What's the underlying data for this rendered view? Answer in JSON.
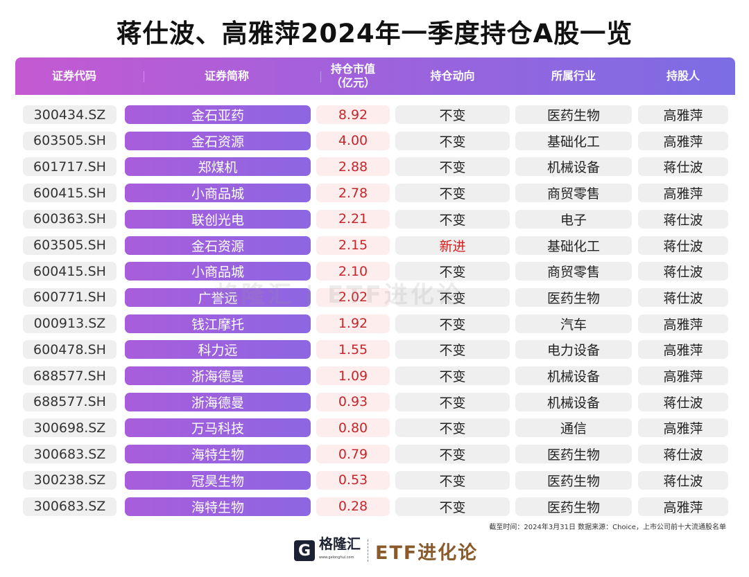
{
  "title": "蒋仕波、高雅萍2024年一季度持仓A股一览",
  "headers": {
    "code": "证券代码",
    "name": "证券简称",
    "value_l1": "持仓市值",
    "value_l2": "（亿元）",
    "trend": "持仓动向",
    "industry": "所属行业",
    "holder": "持股人"
  },
  "rows": [
    {
      "code": "300434.SZ",
      "name": "金石亚药",
      "value": "8.92",
      "trend": "不变",
      "industry": "医药生物",
      "holder": "高雅萍"
    },
    {
      "code": "603505.SH",
      "name": "金石资源",
      "value": "4.00",
      "trend": "不变",
      "industry": "基础化工",
      "holder": "高雅萍"
    },
    {
      "code": "601717.SH",
      "name": "郑煤机",
      "value": "2.88",
      "trend": "不变",
      "industry": "机械设备",
      "holder": "蒋仕波"
    },
    {
      "code": "600415.SH",
      "name": "小商品城",
      "value": "2.78",
      "trend": "不变",
      "industry": "商贸零售",
      "holder": "高雅萍"
    },
    {
      "code": "600363.SH",
      "name": "联创光电",
      "value": "2.21",
      "trend": "不变",
      "industry": "电子",
      "holder": "蒋仕波"
    },
    {
      "code": "603505.SH",
      "name": "金石资源",
      "value": "2.15",
      "trend": "新进",
      "industry": "基础化工",
      "holder": "蒋仕波"
    },
    {
      "code": "600415.SH",
      "name": "小商品城",
      "value": "2.10",
      "trend": "不变",
      "industry": "商贸零售",
      "holder": "蒋仕波"
    },
    {
      "code": "600771.SH",
      "name": "广誉远",
      "value": "2.02",
      "trend": "不变",
      "industry": "医药生物",
      "holder": "蒋仕波"
    },
    {
      "code": "000913.SZ",
      "name": "钱江摩托",
      "value": "1.92",
      "trend": "不变",
      "industry": "汽车",
      "holder": "高雅萍"
    },
    {
      "code": "600478.SH",
      "name": "科力远",
      "value": "1.55",
      "trend": "不变",
      "industry": "电力设备",
      "holder": "高雅萍"
    },
    {
      "code": "688577.SH",
      "name": "浙海德曼",
      "value": "1.09",
      "trend": "不变",
      "industry": "机械设备",
      "holder": "高雅萍"
    },
    {
      "code": "688577.SH",
      "name": "浙海德曼",
      "value": "0.93",
      "trend": "不变",
      "industry": "机械设备",
      "holder": "蒋仕波"
    },
    {
      "code": "300698.SZ",
      "name": "万马科技",
      "value": "0.80",
      "trend": "不变",
      "industry": "通信",
      "holder": "高雅萍"
    },
    {
      "code": "300683.SZ",
      "name": "海特生物",
      "value": "0.79",
      "trend": "不变",
      "industry": "医药生物",
      "holder": "蒋仕波"
    },
    {
      "code": "300238.SZ",
      "name": "冠昊生物",
      "value": "0.53",
      "trend": "不变",
      "industry": "医药生物",
      "holder": "蒋仕波"
    },
    {
      "code": "300683.SZ",
      "name": "海特生物",
      "value": "0.28",
      "trend": "不变",
      "industry": "医药生物",
      "holder": "高雅萍"
    }
  ],
  "watermark": "格隆汇 | ETF进化论",
  "note": "截至时间：2024年3月31日 数据来源：Choice，上市公司前十大流通股名单",
  "footer": {
    "logo_letter": "G",
    "logo_name": "格隆汇",
    "logo_url": "www.gelonghui.com",
    "brand": "ETF进化论"
  },
  "colors": {
    "accent_red": "#c3272c",
    "header_start": "#c45ad2",
    "header_end": "#7c6de4"
  }
}
